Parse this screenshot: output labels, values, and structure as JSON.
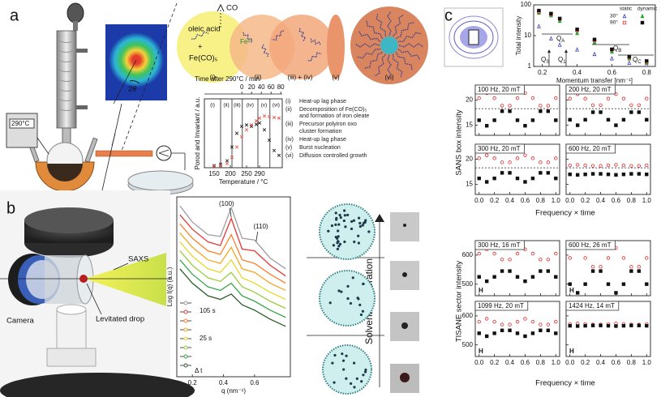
{
  "figure": {
    "panel_labels": [
      "a",
      "b",
      "c"
    ],
    "a": {
      "temperature_display": "290°C",
      "angle": "2θ",
      "oleic_acid": "oleic acid",
      "plus": "+",
      "precursor": "Fe(CO)₅",
      "gas": "CO",
      "ion": "Fe²⁺",
      "stages": [
        "(i)",
        "(ii)",
        "(iii) + (iv)",
        "(v)",
        "(vi)"
      ],
      "phases": [
        {
          "id": "(i)",
          "text": "Heat-up lag phase"
        },
        {
          "id": "(ii)",
          "text": "Decomposition of Fe(CO)₅ and formation of iron oleate"
        },
        {
          "id": "(iii)",
          "text": "Precursor polyiron oxo cluster formation"
        },
        {
          "id": "(iv)",
          "text": "Heat-up lag phase"
        },
        {
          "id": "(v)",
          "text": "Burst nucleation"
        },
        {
          "id": "(vi)",
          "text": "Diffusion controlled growth"
        }
      ]
    },
    "b": {
      "saxs": "SAXS",
      "drop": "Levitated drop",
      "camera": "Camera",
      "evaporation": "Solvent evaporation"
    },
    "c": {
      "sans_ylabel": "SANS box intensity",
      "sans_xlabel": "Frequency × time",
      "tisane_ylabel": "TISANE sector intensity",
      "tisane_xlabel": "Frequency × time"
    }
  },
  "chart_data": [
    {
      "type": "scatter",
      "xlabel": "Temperature / °C",
      "ylabel": "Porod and Invariant / a.u.",
      "x2label": "Time after 290°C / min",
      "xlim": [
        120,
        360
      ],
      "xticks": [
        150,
        200,
        250,
        290
      ],
      "x2lim": [
        -77,
        83
      ],
      "x2ticks": [
        0,
        20,
        40,
        60,
        80
      ],
      "ylim": [
        0,
        1
      ],
      "phase_lines": [
        170,
        205,
        237,
        285,
        322
      ],
      "phase_labels": [
        "(i)",
        "(ii)",
        "(iii)",
        "(iv)",
        "(v)",
        "(vi)"
      ],
      "x": [
        150,
        170,
        190,
        205,
        220,
        235,
        250,
        265,
        280,
        290,
        305,
        320,
        335,
        350
      ],
      "series": [
        {
          "color": "#222222",
          "marker": "x",
          "values": [
            0.03,
            0.05,
            0.1,
            0.3,
            0.5,
            0.6,
            0.62,
            0.6,
            0.63,
            0.65,
            0.55,
            0.4,
            0.25,
            0.18
          ]
        },
        {
          "color": "#e8584f",
          "marker": "x",
          "values": [
            0.02,
            0.03,
            0.06,
            0.15,
            0.3,
            0.45,
            0.55,
            0.62,
            0.68,
            0.72,
            0.75,
            0.74,
            0.73,
            0.72
          ]
        }
      ]
    },
    {
      "type": "line",
      "xlabel": "q (nm⁻¹)",
      "ylabel": "Log I(q) (a.u.)",
      "xlim": [
        0.1,
        0.83
      ],
      "xticks": [
        0.2,
        0.4,
        0.6
      ],
      "ylim": [
        0,
        10
      ],
      "annotations": {
        "peak1": "(100)",
        "peak2": "(110)",
        "t_end": "105 s",
        "t_mid": "25 s",
        "dt": "Δ t"
      },
      "x": [
        0.12,
        0.2,
        0.3,
        0.38,
        0.45,
        0.52,
        0.6,
        0.7,
        0.8
      ],
      "series": [
        {
          "color": "#9e9e9e",
          "values": [
            9.5,
            8.6,
            7.9,
            7.8,
            9.4,
            7.7,
            7.6,
            6.6,
            6.0
          ]
        },
        {
          "color": "#e53935",
          "values": [
            9.0,
            8.2,
            7.5,
            7.3,
            8.8,
            7.1,
            7.0,
            6.2,
            5.6
          ]
        },
        {
          "color": "#ff7f2a",
          "values": [
            8.5,
            7.7,
            7.0,
            6.8,
            7.9,
            6.5,
            6.3,
            5.7,
            5.2
          ]
        },
        {
          "color": "#f5a623",
          "values": [
            8.0,
            7.2,
            6.5,
            6.3,
            7.2,
            6.0,
            5.8,
            5.2,
            4.8
          ]
        },
        {
          "color": "#e5d82a",
          "values": [
            7.5,
            6.7,
            6.0,
            5.8,
            6.5,
            5.5,
            5.2,
            4.7,
            4.3
          ]
        },
        {
          "color": "#9ccc3c",
          "values": [
            7.0,
            6.2,
            5.5,
            5.3,
            5.8,
            5.0,
            4.7,
            4.2,
            3.8
          ]
        },
        {
          "color": "#3aa54a",
          "values": [
            6.5,
            5.7,
            5.0,
            4.8,
            5.2,
            4.5,
            4.2,
            3.7,
            3.3
          ]
        },
        {
          "color": "#2b5e2b",
          "values": [
            6.0,
            5.2,
            4.5,
            4.3,
            4.6,
            4.0,
            3.7,
            3.2,
            2.8
          ]
        }
      ]
    },
    {
      "type": "scatter",
      "xlabel": "Momentum transfer [nm⁻¹]",
      "ylabel": "Total intensity",
      "ylog": true,
      "xlim": [
        0.15,
        0.85
      ],
      "xticks": [
        0.2,
        0.4,
        0.6,
        0.8
      ],
      "ylim": [
        1,
        100
      ],
      "yticks": [
        1,
        10,
        100
      ],
      "legend": {
        "columns": [
          "static",
          "dynamic"
        ],
        "rows": [
          "30°",
          "90°"
        ]
      },
      "q_labels": [
        {
          "main": "Q",
          "sub": "A"
        },
        {
          "main": "Q",
          "sub": "B"
        },
        {
          "main": "Q",
          "sub": "C"
        },
        {
          "main": "Q",
          "sub": "S"
        },
        {
          "main": "Q",
          "sub": "1"
        }
      ],
      "x": [
        0.18,
        0.25,
        0.3,
        0.4,
        0.5,
        0.6,
        0.7,
        0.8
      ],
      "series": [
        {
          "color": "#3b3bb5",
          "marker": "triangle-open",
          "values": [
            20,
            8,
            5,
            3.5,
            2.5,
            1.8,
            1.3,
            1.1
          ]
        },
        {
          "color": "#2ca02c",
          "marker": "triangle",
          "values": [
            55,
            45,
            30,
            12,
            6,
            3,
            1.8,
            1.3
          ]
        },
        {
          "color": "#e02a2a",
          "marker": "square-open",
          "values": [
            60,
            50,
            35,
            15,
            7,
            3.5,
            2,
            1.4
          ]
        },
        {
          "color": "#111111",
          "marker": "square",
          "values": [
            65,
            52,
            36,
            16,
            7.5,
            3.6,
            2.1,
            1.5
          ]
        }
      ]
    },
    {
      "type": "scatter",
      "label": "100 Hz, 20 mT",
      "xlim": [
        -0.05,
        1.05
      ],
      "xticks": [
        0,
        0.2,
        0.4,
        0.6,
        0.8,
        1
      ],
      "show_xticklabels": false,
      "ylim": [
        13,
        23
      ],
      "yticks": [
        15,
        20
      ],
      "reference_y": 18.3,
      "x": [
        0,
        0.1,
        0.2,
        0.3,
        0.4,
        0.5,
        0.6,
        0.7,
        0.8,
        0.9,
        1
      ],
      "series": [
        {
          "color": "#e02a2a",
          "marker": "circle-open",
          "values": [
            20.4,
            21.4,
            20.4,
            18.9,
            18.9,
            20.4,
            21.4,
            20.4,
            18.9,
            18.9,
            20.4
          ]
        },
        {
          "color": "#111111",
          "marker": "square",
          "values": [
            16.0,
            14.9,
            16.0,
            17.8,
            17.8,
            16.0,
            14.9,
            16.0,
            17.8,
            17.8,
            16.0
          ]
        }
      ]
    },
    {
      "type": "scatter",
      "label": "200 Hz, 20 mT",
      "xlim": [
        -0.05,
        1.05
      ],
      "xticks": [
        0,
        0.2,
        0.4,
        0.6,
        0.8,
        1
      ],
      "show_xticklabels": false,
      "show_yticklabels": false,
      "ylim": [
        13,
        23
      ],
      "yticks": [
        15,
        20
      ],
      "reference_y": 18.3,
      "x": [
        0,
        0.1,
        0.2,
        0.3,
        0.4,
        0.5,
        0.6,
        0.7,
        0.8,
        0.9,
        1
      ],
      "series": [
        {
          "color": "#e02a2a",
          "marker": "circle-open",
          "values": [
            20.3,
            21.2,
            20.3,
            19.0,
            19.0,
            20.3,
            21.2,
            20.3,
            19.0,
            19.0,
            20.3
          ]
        },
        {
          "color": "#111111",
          "marker": "square",
          "values": [
            16.1,
            15.0,
            16.1,
            17.6,
            17.6,
            16.1,
            15.0,
            16.1,
            17.6,
            17.6,
            16.1
          ]
        }
      ]
    },
    {
      "type": "scatter",
      "label": "300 Hz, 20 mT",
      "xlim": [
        -0.05,
        1.05
      ],
      "xticks": [
        {
          "value": 0,
          "label": "0.0"
        },
        {
          "value": 0.2,
          "label": "0.2"
        },
        {
          "value": 0.4,
          "label": "0.4"
        },
        {
          "value": 0.6,
          "label": "0.6"
        },
        {
          "value": 0.8,
          "label": "0.8"
        },
        {
          "value": 1,
          "label": "1.0"
        }
      ],
      "ylim": [
        13,
        23
      ],
      "yticks": [
        15,
        20
      ],
      "reference_y": 18.3,
      "x": [
        0,
        0.1,
        0.2,
        0.3,
        0.4,
        0.5,
        0.6,
        0.7,
        0.8,
        0.9,
        1
      ],
      "series": [
        {
          "color": "#e02a2a",
          "marker": "circle-open",
          "values": [
            20.2,
            20.8,
            20.2,
            19.4,
            19.4,
            20.2,
            20.8,
            20.2,
            19.4,
            19.4,
            20.2
          ]
        },
        {
          "color": "#111111",
          "marker": "square",
          "values": [
            16.2,
            15.5,
            16.2,
            17.3,
            17.3,
            16.2,
            15.5,
            16.2,
            17.3,
            17.3,
            16.2
          ]
        }
      ]
    },
    {
      "type": "scatter",
      "label": "600 Hz, 20 mT",
      "xlim": [
        -0.05,
        1.05
      ],
      "show_yticklabels": false,
      "xticks": [
        {
          "value": 0,
          "label": "0.0"
        },
        {
          "value": 0.2,
          "label": "0.2"
        },
        {
          "value": 0.4,
          "label": "0.4"
        },
        {
          "value": 0.6,
          "label": "0.6"
        },
        {
          "value": 0.8,
          "label": "0.8"
        },
        {
          "value": 1,
          "label": "1.0"
        }
      ],
      "ylim": [
        13,
        23
      ],
      "yticks": [
        15,
        20
      ],
      "reference_y": 18.3,
      "x": [
        0,
        0.1,
        0.2,
        0.3,
        0.4,
        0.5,
        0.6,
        0.7,
        0.8,
        0.9,
        1
      ],
      "series": [
        {
          "color": "#e02a2a",
          "marker": "circle-open",
          "values": [
            18.8,
            18.9,
            18.8,
            18.7,
            18.7,
            18.8,
            18.9,
            18.8,
            18.7,
            18.7,
            18.8
          ]
        },
        {
          "color": "#111111",
          "marker": "square",
          "values": [
            17.0,
            16.9,
            17.0,
            17.1,
            17.1,
            17.0,
            16.9,
            17.0,
            17.1,
            17.1,
            17.0
          ]
        }
      ]
    },
    {
      "type": "scatter",
      "label": "300 Hz, 16 mT",
      "annotation": "H",
      "xlim": [
        -0.05,
        1.05
      ],
      "xticks": [
        0,
        0.2,
        0.4,
        0.6,
        0.8,
        1
      ],
      "show_xticklabels": false,
      "ylim": [
        460,
        650
      ],
      "yticks": [
        500,
        600
      ],
      "x": [
        0,
        0.1,
        0.2,
        0.3,
        0.4,
        0.5,
        0.6,
        0.7,
        0.8,
        0.9,
        1
      ],
      "series": [
        {
          "color": "#e02a2a",
          "marker": "circle-open",
          "values": [
            605,
            620,
            605,
            585,
            585,
            605,
            620,
            605,
            585,
            585,
            605
          ]
        },
        {
          "color": "#111111",
          "marker": "square",
          "values": [
            525,
            510,
            525,
            545,
            545,
            525,
            510,
            525,
            545,
            545,
            525
          ]
        }
      ]
    },
    {
      "type": "scatter",
      "label": "600 Hz, 26 mT",
      "annotation": "H",
      "xlim": [
        -0.05,
        1.05
      ],
      "xticks": [
        0,
        0.2,
        0.4,
        0.6,
        0.8,
        1
      ],
      "show_xticklabels": false,
      "show_yticklabels": false,
      "ylim": [
        460,
        650
      ],
      "yticks": [
        500,
        600
      ],
      "x": [
        0,
        0.1,
        0.2,
        0.3,
        0.4,
        0.5,
        0.6,
        0.7,
        0.8,
        0.9,
        1
      ],
      "series": [
        {
          "color": "#e02a2a",
          "marker": "circle-open",
          "values": [
            590,
            625,
            590,
            560,
            560,
            590,
            625,
            590,
            560,
            560,
            590
          ]
        },
        {
          "color": "#111111",
          "marker": "square",
          "values": [
            500,
            470,
            500,
            545,
            545,
            500,
            470,
            500,
            545,
            545,
            500
          ]
        }
      ]
    },
    {
      "type": "scatter",
      "label": "1099 Hz, 20 mT",
      "annotation": "H",
      "xlim": [
        -0.05,
        1.05
      ],
      "xticks": [
        {
          "value": 0,
          "label": "0.0"
        },
        {
          "value": 0.2,
          "label": "0.2"
        },
        {
          "value": 0.4,
          "label": "0.4"
        },
        {
          "value": 0.6,
          "label": "0.6"
        },
        {
          "value": 0.8,
          "label": "0.8"
        },
        {
          "value": 1,
          "label": "1.0"
        }
      ],
      "ylim": [
        460,
        650
      ],
      "yticks": [
        500,
        600
      ],
      "x": [
        0,
        0.1,
        0.2,
        0.3,
        0.4,
        0.5,
        0.6,
        0.7,
        0.8,
        0.9,
        1
      ],
      "series": [
        {
          "color": "#e02a2a",
          "marker": "circle-open",
          "values": [
            580,
            590,
            580,
            570,
            570,
            580,
            590,
            580,
            570,
            570,
            580
          ]
        },
        {
          "color": "#111111",
          "marker": "square",
          "values": [
            540,
            530,
            540,
            550,
            550,
            540,
            530,
            540,
            550,
            550,
            540
          ]
        }
      ]
    },
    {
      "type": "scatter",
      "label": "1424 Hz, 14 mT",
      "annotation": "H",
      "xlim": [
        -0.05,
        1.05
      ],
      "show_yticklabels": false,
      "xticks": [
        {
          "value": 0,
          "label": "0.0"
        },
        {
          "value": 0.2,
          "label": "0.2"
        },
        {
          "value": 0.4,
          "label": "0.4"
        },
        {
          "value": 0.6,
          "label": "0.6"
        },
        {
          "value": 0.8,
          "label": "0.8"
        },
        {
          "value": 1,
          "label": "1.0"
        }
      ],
      "ylim": [
        460,
        650
      ],
      "yticks": [
        500,
        600
      ],
      "x": [
        0,
        0.1,
        0.2,
        0.3,
        0.4,
        0.5,
        0.6,
        0.7,
        0.8,
        0.9,
        1
      ],
      "series": [
        {
          "color": "#e02a2a",
          "marker": "circle-open",
          "values": [
            572,
            574,
            572,
            570,
            570,
            572,
            574,
            572,
            570,
            570,
            572
          ]
        },
        {
          "color": "#111111",
          "marker": "square",
          "values": [
            566,
            565,
            566,
            567,
            567,
            566,
            565,
            566,
            567,
            567,
            566
          ]
        }
      ]
    }
  ]
}
